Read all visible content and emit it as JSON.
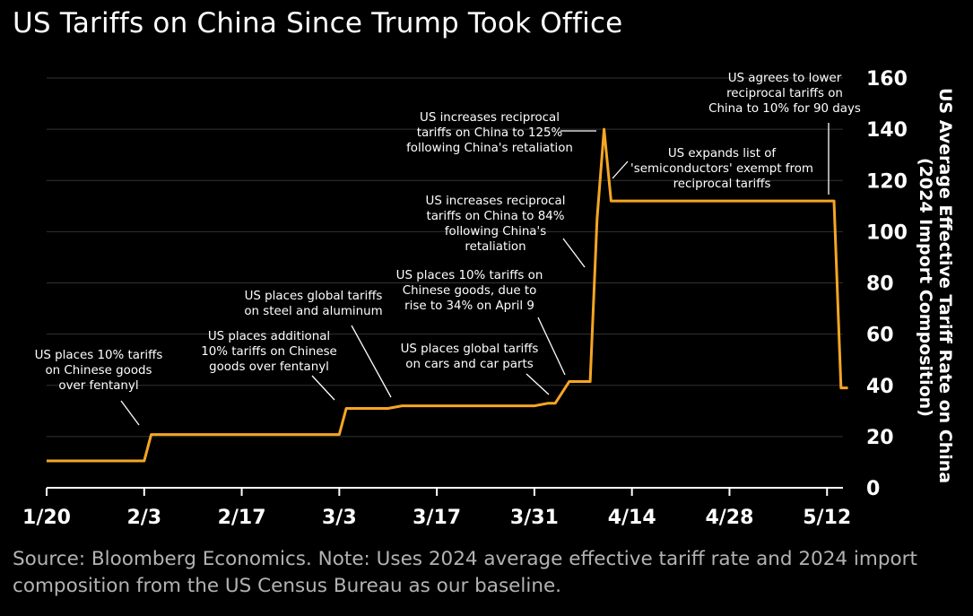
{
  "title": "US Tariffs on China Since Trump Took Office",
  "source": "Source: Bloomberg Economics. Note: Uses 2024 average effective tariff rate and 2024 import composition from the US Census Bureau as our baseline.",
  "colors": {
    "line": "#f5a623",
    "grid": "#333333",
    "axis": "#ffffff",
    "background": "#000000"
  },
  "chart_data": {
    "type": "line",
    "title": "US Tariffs on China Since Trump Took Office",
    "ylabel": "US Average Effective Tariff Rate on China (2024 Import Composition)",
    "xlabel": "",
    "ylim": [
      0,
      160
    ],
    "y_ticks": [
      0,
      20,
      40,
      60,
      80,
      100,
      120,
      140,
      160
    ],
    "x_tick_labels": [
      "1/20",
      "2/3",
      "2/17",
      "3/3",
      "3/17",
      "3/31",
      "4/14",
      "4/28",
      "5/12"
    ],
    "grid": true,
    "y_axis_side": "right",
    "series": [
      {
        "points": [
          [
            "1/20",
            10.5
          ],
          [
            "2/3",
            10.5
          ],
          [
            "2/4",
            20.8
          ],
          [
            "3/3",
            20.8
          ],
          [
            "3/4",
            31
          ],
          [
            "3/10",
            31
          ],
          [
            "3/12",
            32
          ],
          [
            "3/31",
            32
          ],
          [
            "4/2",
            33
          ],
          [
            "4/3",
            33
          ],
          [
            "4/5",
            41.5
          ],
          [
            "4/8",
            41.5
          ],
          [
            "4/9",
            105
          ],
          [
            "4/10",
            140
          ],
          [
            "4/11",
            112
          ],
          [
            "5/13",
            112
          ],
          [
            "5/14",
            39
          ],
          [
            "5/15",
            39
          ]
        ]
      }
    ],
    "annotations": [
      {
        "text": "US places 10% tariffs\non Chinese goods\nover fentanyl"
      },
      {
        "text": "US places additional\n10% tariffs on Chinese\ngoods over fentanyl"
      },
      {
        "text": "US places global tariffs\non steel and aluminum"
      },
      {
        "text": "US places global tariffs\non cars and car parts"
      },
      {
        "text": "US places 10% tariffs on\nChinese goods, due to\nrise to 34% on April 9"
      },
      {
        "text": "US increases reciprocal\ntariffs on China to 84%\nfollowing China's\nretaliation"
      },
      {
        "text": "US increases reciprocal\ntariffs on China to 125%\nfollowing China's retaliation"
      },
      {
        "text": "US expands list of\n'semiconductors' exempt from\nreciprocal tariffs"
      },
      {
        "text": "US agrees to lower\nreciprocal tariffs on\nChina to 10% for 90 days"
      }
    ]
  }
}
